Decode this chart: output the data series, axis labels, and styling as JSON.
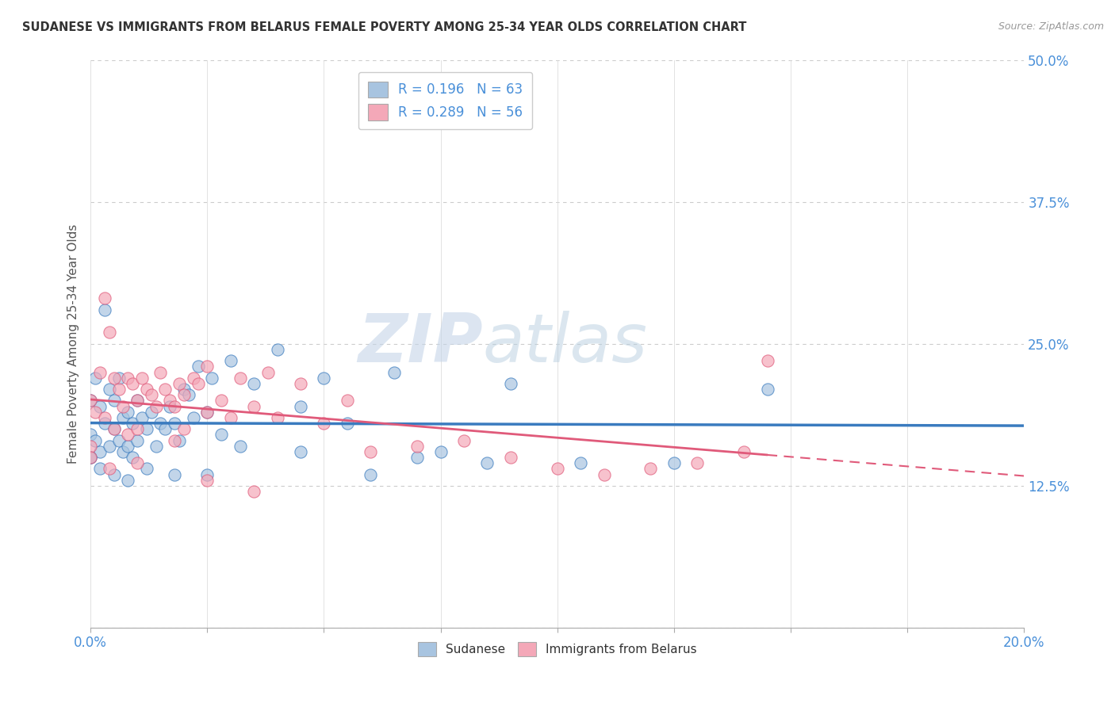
{
  "title": "SUDANESE VS IMMIGRANTS FROM BELARUS FEMALE POVERTY AMONG 25-34 YEAR OLDS CORRELATION CHART",
  "source": "Source: ZipAtlas.com",
  "ylabel": "Female Poverty Among 25-34 Year Olds",
  "xlim": [
    0.0,
    20.0
  ],
  "ylim": [
    0.0,
    50.0
  ],
  "yticks": [
    0.0,
    12.5,
    25.0,
    37.5,
    50.0
  ],
  "ytick_labels": [
    "",
    "12.5%",
    "25.0%",
    "37.5%",
    "50.0%"
  ],
  "xtick_positions": [
    0.0,
    2.5,
    5.0,
    7.5,
    10.0,
    12.5,
    15.0,
    17.5,
    20.0
  ],
  "sudanese_color": "#a8c4e0",
  "belarus_color": "#f4a8b8",
  "sudanese_line_color": "#3a7bbf",
  "belarus_line_color": "#e05a7a",
  "R_sudanese": 0.196,
  "N_sudanese": 63,
  "R_belarus": 0.289,
  "N_belarus": 56,
  "legend_label_1": "R = 0.196   N = 63",
  "legend_label_2": "R = 0.289   N = 56",
  "sudanese_x": [
    0.0,
    0.0,
    0.0,
    0.1,
    0.1,
    0.2,
    0.2,
    0.3,
    0.3,
    0.4,
    0.4,
    0.5,
    0.5,
    0.6,
    0.6,
    0.7,
    0.7,
    0.8,
    0.8,
    0.9,
    0.9,
    1.0,
    1.0,
    1.1,
    1.2,
    1.3,
    1.4,
    1.5,
    1.6,
    1.7,
    1.8,
    1.9,
    2.0,
    2.1,
    2.2,
    2.3,
    2.5,
    2.6,
    2.8,
    3.0,
    3.5,
    4.0,
    4.5,
    5.0,
    5.5,
    6.5,
    7.5,
    9.0,
    10.5,
    12.5,
    14.5,
    0.0,
    0.2,
    0.5,
    0.8,
    1.2,
    1.8,
    2.5,
    3.2,
    4.5,
    6.0,
    7.0,
    8.5
  ],
  "sudanese_y": [
    20.0,
    17.0,
    15.0,
    22.0,
    16.5,
    19.5,
    15.5,
    28.0,
    18.0,
    21.0,
    16.0,
    20.0,
    17.5,
    22.0,
    16.5,
    18.5,
    15.5,
    19.0,
    16.0,
    18.0,
    15.0,
    20.0,
    16.5,
    18.5,
    17.5,
    19.0,
    16.0,
    18.0,
    17.5,
    19.5,
    18.0,
    16.5,
    21.0,
    20.5,
    18.5,
    23.0,
    19.0,
    22.0,
    17.0,
    23.5,
    21.5,
    24.5,
    19.5,
    22.0,
    18.0,
    22.5,
    15.5,
    21.5,
    14.5,
    14.5,
    21.0,
    15.0,
    14.0,
    13.5,
    13.0,
    14.0,
    13.5,
    13.5,
    16.0,
    15.5,
    13.5,
    15.0,
    14.5
  ],
  "belarus_x": [
    0.0,
    0.0,
    0.1,
    0.2,
    0.3,
    0.3,
    0.4,
    0.5,
    0.5,
    0.6,
    0.7,
    0.8,
    0.8,
    0.9,
    1.0,
    1.0,
    1.1,
    1.2,
    1.3,
    1.4,
    1.5,
    1.6,
    1.7,
    1.8,
    1.9,
    2.0,
    2.0,
    2.2,
    2.3,
    2.5,
    2.5,
    2.8,
    3.0,
    3.2,
    3.5,
    3.8,
    4.0,
    4.5,
    5.0,
    5.5,
    6.0,
    7.0,
    8.0,
    9.0,
    10.0,
    11.0,
    12.0,
    13.0,
    14.0,
    14.5,
    0.0,
    0.4,
    1.0,
    1.8,
    2.5,
    3.5
  ],
  "belarus_y": [
    20.0,
    16.0,
    19.0,
    22.5,
    29.0,
    18.5,
    26.0,
    22.0,
    17.5,
    21.0,
    19.5,
    22.0,
    17.0,
    21.5,
    20.0,
    17.5,
    22.0,
    21.0,
    20.5,
    19.5,
    22.5,
    21.0,
    20.0,
    19.5,
    21.5,
    20.5,
    17.5,
    22.0,
    21.5,
    19.0,
    23.0,
    20.0,
    18.5,
    22.0,
    19.5,
    22.5,
    18.5,
    21.5,
    18.0,
    20.0,
    15.5,
    16.0,
    16.5,
    15.0,
    14.0,
    13.5,
    14.0,
    14.5,
    15.5,
    23.5,
    15.0,
    14.0,
    14.5,
    16.5,
    13.0,
    12.0
  ],
  "watermark_zip": "ZIP",
  "watermark_atlas": "atlas",
  "background_color": "#ffffff",
  "grid_color": "#dddddd",
  "dotted_grid_color": "#cccccc"
}
